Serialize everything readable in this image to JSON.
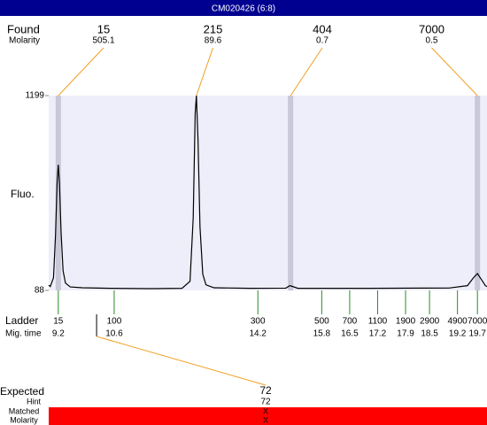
{
  "chart_data": {
    "type": "electropherogram",
    "title": "CM020426 (6:8)",
    "found_label": "Found",
    "molarity_label": "Molarity",
    "y_label": "Fluo.",
    "ylim": [
      88,
      1199
    ],
    "yticks": [
      88,
      1199
    ],
    "xlim": [
      8.96,
      19.94
    ],
    "found": [
      {
        "size": 15,
        "molarity": 505.1,
        "time": 9.2,
        "marker": true
      },
      {
        "size": 215,
        "molarity": 89.6,
        "time": 12.66,
        "marker": false
      },
      {
        "size": 404,
        "molarity": 0.7,
        "time": 15.02,
        "marker": true
      },
      {
        "size": 7000,
        "molarity": 0.5,
        "time": 19.7,
        "marker": true
      }
    ],
    "trace": {
      "x": [
        8.96,
        9.0,
        9.08,
        9.13,
        9.17,
        9.2,
        9.23,
        9.27,
        9.32,
        9.38,
        9.5,
        9.8,
        10.5,
        11.5,
        12.3,
        12.5,
        12.58,
        12.63,
        12.66,
        12.7,
        12.75,
        12.82,
        12.9,
        13.1,
        14.0,
        14.9,
        15.0,
        15.05,
        15.2,
        17.0,
        19.0,
        19.45,
        19.6,
        19.7,
        19.8,
        19.9,
        19.94
      ],
      "values": [
        118,
        110,
        160,
        400,
        700,
        805,
        700,
        420,
        200,
        130,
        108,
        103,
        100,
        98,
        100,
        140,
        500,
        1100,
        1199,
        950,
        450,
        180,
        120,
        103,
        100,
        101,
        115,
        112,
        100,
        100,
        102,
        115,
        160,
        184,
        150,
        115,
        110
      ]
    },
    "ladder_label": "Ladder",
    "time_label": "Mig. time",
    "ladder": {
      "sizes": [
        15,
        100,
        300,
        500,
        700,
        1100,
        1900,
        2900,
        4900,
        7000
      ],
      "times": [
        9.2,
        10.6,
        14.2,
        15.8,
        16.5,
        17.2,
        17.9,
        18.5,
        19.2,
        19.7
      ]
    },
    "expected_label": "Expected",
    "hint_label": "Hint",
    "matched_label": "Matched",
    "expected_molarity_label": "Molarity",
    "expected": {
      "size": 72,
      "hint": 72,
      "time": 10.16,
      "matched": "X",
      "molarity": "X"
    },
    "colors": {
      "titlebar": "#000090",
      "plot": "#eeeefa",
      "marker": "#c8c8d8",
      "leader": "#f0a020",
      "ladder": "#2a8a2a",
      "matched": "#ff0000"
    }
  }
}
